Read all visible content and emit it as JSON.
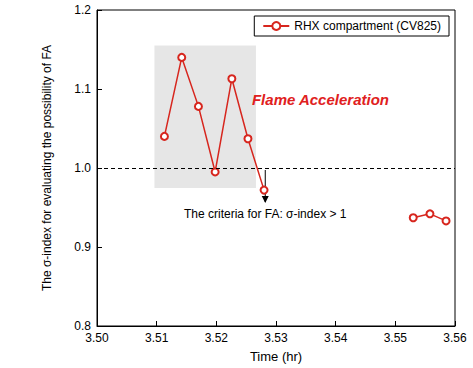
{
  "chart_data": {
    "type": "line",
    "x_label": "Time (hr)",
    "y_label": "The σ-index for evaluating the possibility of FA",
    "x": [
      3.5113,
      3.5142,
      3.517,
      3.5198,
      3.5226,
      3.5253,
      3.528,
      null,
      3.553,
      3.5558,
      3.5585
    ],
    "series": [
      {
        "name": "RHX compartment (CV825)",
        "color": "#d7261e",
        "marker": "open circle",
        "values": [
          1.04,
          1.14,
          1.078,
          0.995,
          1.113,
          1.037,
          0.972,
          null,
          0.937,
          0.942,
          0.933
        ]
      }
    ],
    "xlim": [
      3.5,
      3.56
    ],
    "xticks": [
      {
        "value": 3.5,
        "label": "3.50"
      },
      3.51,
      3.52,
      3.53,
      3.54,
      3.55,
      3.56
    ],
    "ylim": [
      0.8,
      1.2
    ],
    "yticks": [
      0.8,
      0.9,
      {
        "value": 1,
        "label": "1.0"
      },
      1.1,
      1.2
    ],
    "grid": false,
    "legend": "upper right",
    "reference_line": {
      "value": 1,
      "line_style": "dashed"
    },
    "annotations": [
      {
        "text": "Flame Acceleration",
        "color": "#e02020"
      },
      {
        "text": "The criteria for FA: σ-index > 1"
      }
    ]
  }
}
